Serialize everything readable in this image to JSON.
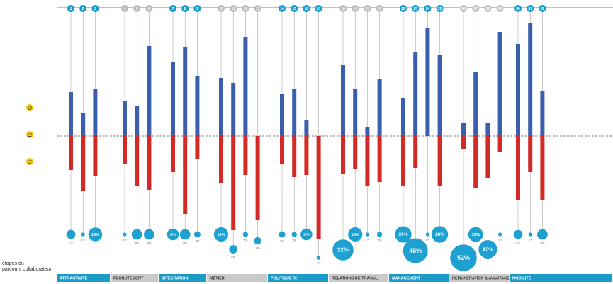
{
  "chart_data": {
    "type": "diverging-bar",
    "axis_title": [
      "étapes du",
      "parcours collaborateur"
    ],
    "groups": [
      {
        "label": "ATTRACTIVITÉ",
        "color": "#1b9cc8",
        "steps": [
          "1",
          "2",
          "3"
        ]
      },
      {
        "label": "RECRUTEMENT",
        "color": "#c9c9c9",
        "steps": [
          "4",
          "5",
          "6"
        ]
      },
      {
        "label": "INTÉGRATION",
        "color": "#1b9cc8",
        "steps": [
          "7",
          "8",
          "9"
        ]
      },
      {
        "label": "MÉTIER",
        "color": "#c9c9c9",
        "steps": [
          "10",
          "11",
          "12",
          "13"
        ]
      },
      {
        "label": "POLITIQUE RH",
        "color": "#1b9cc8",
        "steps": [
          "14",
          "15",
          "16",
          "17"
        ]
      },
      {
        "label": "RELATIONS DE TRAVAIL",
        "color": "#c9c9c9",
        "steps": [
          "18",
          "19",
          "20",
          "21"
        ]
      },
      {
        "label": "MANAGEMENT",
        "color": "#1b9cc8",
        "steps": [
          "22",
          "23",
          "24",
          "25"
        ]
      },
      {
        "label": "RÉMUNÉRATION & AVANTAGES",
        "color": "#c9c9c9",
        "steps": [
          "26",
          "27",
          "28",
          "29"
        ]
      },
      {
        "label": "MOBILITÉ",
        "color": "#1b9cc8",
        "steps": [
          "30",
          "31",
          "32"
        ]
      }
    ],
    "ylim": [
      -150,
      165
    ],
    "series": [
      {
        "color": "#3a5fad",
        "values": [
          62,
          32,
          67,
          49,
          42,
          127,
          104,
          126,
          84,
          82,
          75,
          140,
          0,
          59,
          66,
          22,
          0,
          100,
          67,
          12,
          80,
          54,
          119,
          152,
          114,
          18,
          90,
          19,
          147,
          130,
          159,
          64
        ]
      },
      {
        "color": "#d42a26",
        "values": [
          -48,
          -78,
          -56,
          -40,
          -70,
          -76,
          -51,
          -110,
          -33,
          -66,
          -133,
          -55,
          -118,
          -40,
          -58,
          -55,
          -145,
          -53,
          -46,
          -70,
          -65,
          -70,
          -45,
          0,
          -70,
          -18,
          -73,
          -60,
          -23,
          -91,
          -51,
          -90
        ]
      },
      {
        "color": "#1ea0d0",
        "values": [
          6,
          1,
          14,
          1,
          8,
          8,
          10,
          8,
          3,
          15,
          5,
          2,
          4,
          3,
          2,
          10,
          1,
          32,
          15,
          1,
          2,
          20,
          45,
          1,
          20,
          52,
          16,
          25,
          1,
          6,
          1,
          8
        ],
        "value_labels": [
          "6%",
          "1%",
          "14%",
          "1%",
          "8%",
          "8%",
          "10%",
          "8%",
          "3%",
          "15%",
          "5%",
          "2%",
          "4%",
          "3%",
          "2%",
          "10%",
          "1%",
          "32%",
          "15%",
          "1%",
          "2%",
          "20%",
          "45%",
          "1%",
          "20%",
          "52%",
          "16%",
          "25%",
          "1%",
          "6%",
          "1%",
          "8%"
        ]
      }
    ],
    "baseline_dashed": true
  }
}
